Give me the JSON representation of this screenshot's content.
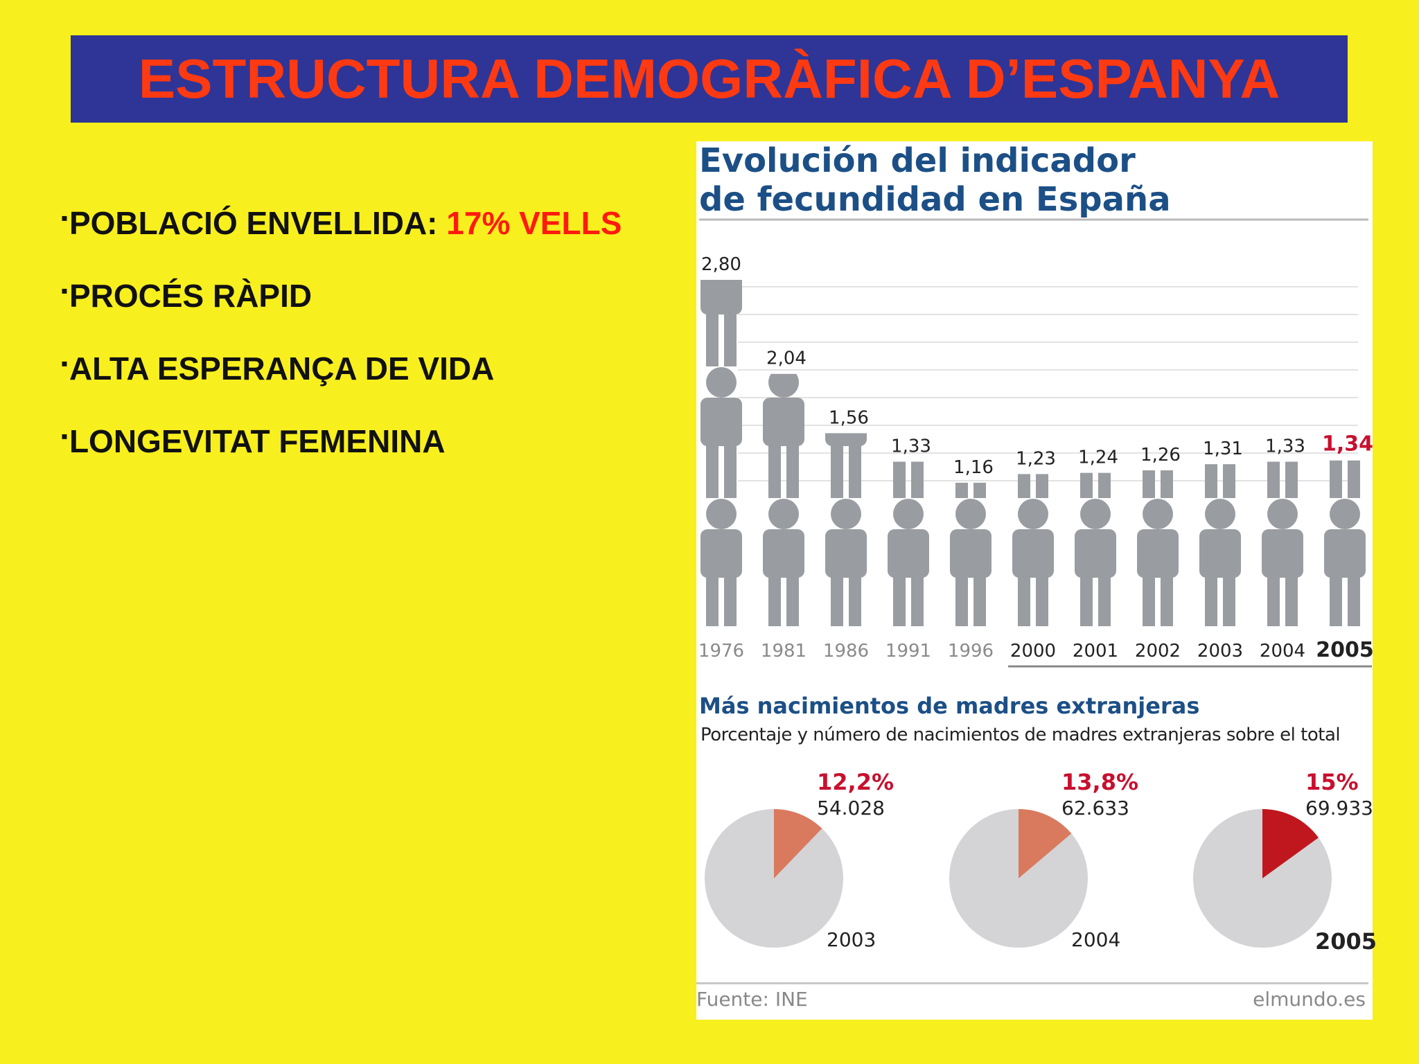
{
  "slide": {
    "title": "ESTRUCTURA DEMOGRÀFICA D’ESPANYA",
    "bullet_marker": "▪",
    "bullets": [
      {
        "text": "POBLACIÓ ENVELLIDA: ",
        "highlight": "17% VELLS"
      },
      {
        "text": "PROCÉS RÀPID"
      },
      {
        "text": "ALTA ESPERANÇA DE VIDA"
      },
      {
        "text": "LONGEVITAT FEMENINA"
      }
    ]
  },
  "infographic": {
    "title_line1": "Evolución del indicador",
    "title_line2": "de fecundidad en España",
    "pie_title": "Más nacimientos de madres extranjeras",
    "pie_subtitle": "Porcentaje y número de nacimientos de madres extranjeras sobre el total",
    "source": "Fuente: INE",
    "credit": "elmundo.es"
  },
  "colors": {
    "background": "#f8ef1e",
    "title_bar": "#2e3596",
    "title_text": "#ff3a12",
    "figure": "#999ca1",
    "pie_base": "#d4d4d6",
    "pie_light": "#d97a5f",
    "pie_dark": "#c0171f",
    "highlight_red": "#c8102e"
  },
  "chart_data": [
    {
      "type": "bar",
      "title": "Evolución del indicador de fecundidad en España",
      "categories": [
        "1976",
        "1981",
        "1986",
        "1991",
        "1996",
        "2000",
        "2001",
        "2002",
        "2003",
        "2004",
        "2005"
      ],
      "value_labels": [
        "2,80",
        "2,04",
        "1,56",
        "1,33",
        "1,16",
        "1,23",
        "1,24",
        "1,26",
        "1,31",
        "1,33",
        "1,34"
      ],
      "values": [
        2.8,
        2.04,
        1.56,
        1.33,
        1.16,
        1.23,
        1.24,
        1.26,
        1.31,
        1.33,
        1.34
      ],
      "highlight_category": "2005",
      "ylim": [
        0,
        2.8
      ]
    },
    {
      "type": "pie",
      "title": "Más nacimientos de madres extranjeras",
      "series": [
        {
          "year": "2003",
          "percent_label": "12,2%",
          "percent": 12.2,
          "count_label": "54.028",
          "count": 54028
        },
        {
          "year": "2004",
          "percent_label": "13,8%",
          "percent": 13.8,
          "count_label": "62.633",
          "count": 62633
        },
        {
          "year": "2005",
          "percent_label": "15%",
          "percent": 15,
          "count_label": "69.933",
          "count": 69933
        }
      ]
    }
  ]
}
